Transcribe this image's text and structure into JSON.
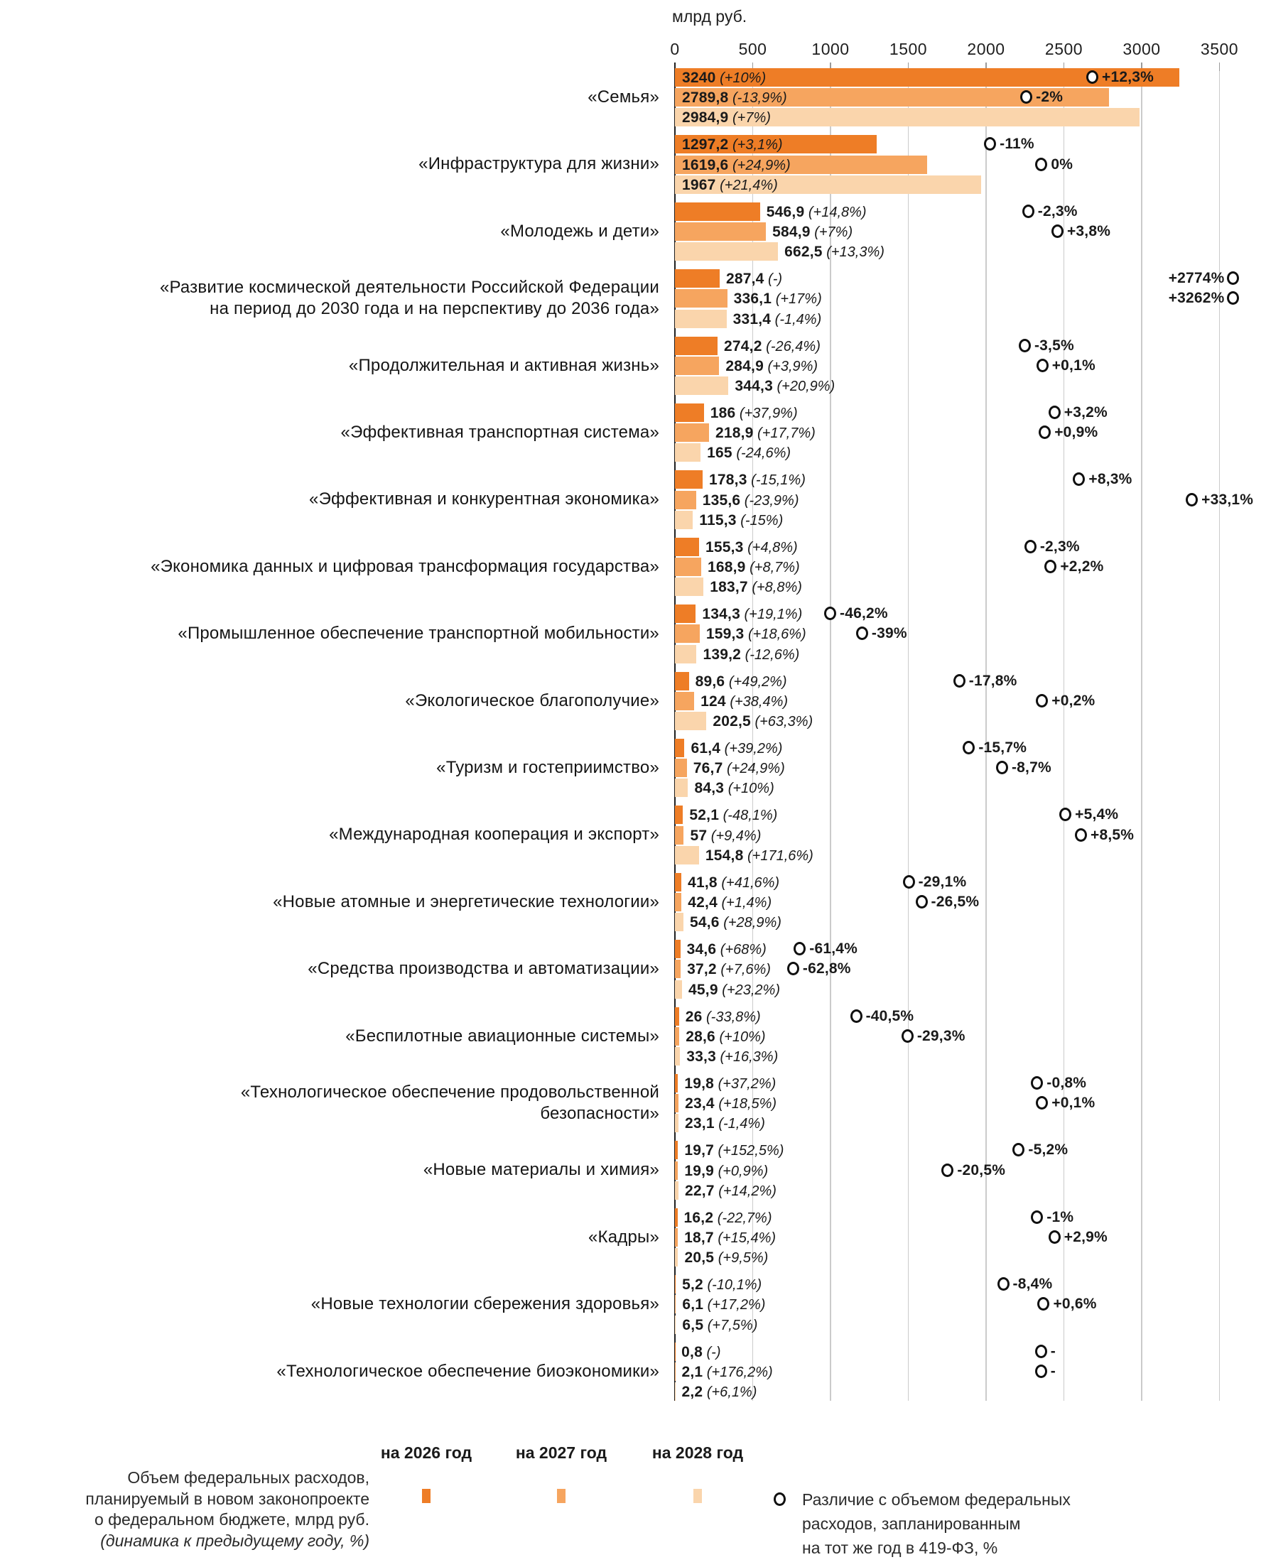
{
  "axis": {
    "unit_label": "млрд руб.",
    "ticks": [
      0,
      500,
      1000,
      1500,
      2000,
      2500,
      3000,
      3500
    ],
    "max": 3500
  },
  "colors": {
    "bar_2026": "#EE7D26",
    "bar_2027": "#F6A55F",
    "bar_2028": "#FAD5AC",
    "gridline": "#CBCBCB",
    "axis_line": "#1F1F1F",
    "marker_ring": "#101010"
  },
  "legend": {
    "col_2026": "на 2026 год",
    "col_2027": "на 2027 год",
    "col_2028": "на 2028 год",
    "bars_desc_line1": "Объем федеральных расходов,",
    "bars_desc_line2": "планируемый в новом законопроекте",
    "bars_desc_line3": "о федеральном бюджете, млрд руб.",
    "bars_desc_line4": "(динамика к предыдущему году, %)",
    "marker_desc": "Различие с объемом федеральных\nрасходов, запланированным\nна тот же год в 419-ФЗ, %"
  },
  "chart_data": {
    "type": "bar",
    "orientation": "horizontal",
    "unit": "млрд руб.",
    "xlim": [
      0,
      3500
    ],
    "grid": true,
    "series_labels": [
      "на 2026 год",
      "на 2027 год",
      "на 2028 год"
    ],
    "marker_meaning": "Различие с объемом федеральных расходов, запланированным на тот же год в 419-ФЗ, %",
    "groups": [
      {
        "label": "«Семья»",
        "bars": [
          {
            "value": 3240,
            "value_label": "3240",
            "delta": "(+10%)",
            "marker": {
              "text": "+12,3%",
              "pos": 2685
            }
          },
          {
            "value": 2789.8,
            "value_label": "2789,8",
            "delta": "(-13,9%)",
            "marker": {
              "text": "-2%",
              "pos": 2261
            }
          },
          {
            "value": 2984.9,
            "value_label": "2984,9",
            "delta": "(+7%)",
            "marker": null
          }
        ]
      },
      {
        "label": "«Инфраструктура для жизни»",
        "bars": [
          {
            "value": 1297.2,
            "value_label": "1297,2",
            "delta": "(+3,1%)",
            "marker": {
              "text": "-11%",
              "pos": 2028
            }
          },
          {
            "value": 1619.6,
            "value_label": "1619,6",
            "delta": "(+24,9%)",
            "marker": {
              "text": "0%",
              "pos": 2358
            }
          },
          {
            "value": 1967,
            "value_label": "1967",
            "delta": "(+21,4%)",
            "marker": null
          }
        ]
      },
      {
        "label": "«Молодежь и дети»",
        "bars": [
          {
            "value": 546.9,
            "value_label": "546,9",
            "delta": "(+14,8%)",
            "marker": {
              "text": "-2,3%",
              "pos": 2273
            }
          },
          {
            "value": 584.9,
            "value_label": "584,9",
            "delta": "(+7%)",
            "marker": {
              "text": "+3,8%",
              "pos": 2461
            }
          },
          {
            "value": 662.5,
            "value_label": "662,5",
            "delta": "(+13,3%)",
            "marker": null
          }
        ]
      },
      {
        "label": "«Развитие космической деятельности Российской Федерации\nна период до 2030 года и на перспективу до 2036 года»",
        "bars": [
          {
            "value": 287.4,
            "value_label": "287,4",
            "delta": "(-)",
            "marker": {
              "text": "+2774%",
              "pos": 3587,
              "side": "left"
            }
          },
          {
            "value": 336.1,
            "value_label": "336,1",
            "delta": "(+17%)",
            "marker": {
              "text": "+3262%",
              "pos": 3587,
              "side": "left"
            }
          },
          {
            "value": 331.4,
            "value_label": "331,4",
            "delta": "(-1,4%)",
            "marker": null
          }
        ]
      },
      {
        "label": "«Продолжительная и активная жизнь»",
        "bars": [
          {
            "value": 274.2,
            "value_label": "274,2",
            "delta": "(-26,4%)",
            "marker": {
              "text": "-3,5%",
              "pos": 2251
            }
          },
          {
            "value": 284.9,
            "value_label": "284,9",
            "delta": "(+3,9%)",
            "marker": {
              "text": "+0,1%",
              "pos": 2364
            }
          },
          {
            "value": 344.3,
            "value_label": "344,3",
            "delta": "(+20,9%)",
            "marker": null
          }
        ]
      },
      {
        "label": "«Эффективная транспортная система»",
        "bars": [
          {
            "value": 186,
            "value_label": "186",
            "delta": "(+37,9%)",
            "marker": {
              "text": "+3,2%",
              "pos": 2442
            }
          },
          {
            "value": 218.9,
            "value_label": "218,9",
            "delta": "(+17,7%)",
            "marker": {
              "text": "+0,9%",
              "pos": 2380
            }
          },
          {
            "value": 165,
            "value_label": "165",
            "delta": "(-24,6%)",
            "marker": null
          }
        ]
      },
      {
        "label": "«Эффективная и конкурентная экономика»",
        "bars": [
          {
            "value": 178.3,
            "value_label": "178,3",
            "delta": "(-15,1%)",
            "marker": {
              "text": "+8,3%",
              "pos": 2600
            }
          },
          {
            "value": 135.6,
            "value_label": "135,6",
            "delta": "(-23,9%)",
            "marker": {
              "text": "+33,1%",
              "pos": 3325
            }
          },
          {
            "value": 115.3,
            "value_label": "115,3",
            "delta": "(-15%)",
            "marker": null
          }
        ]
      },
      {
        "label": "«Экономика данных и цифровая трансформация государства»",
        "bars": [
          {
            "value": 155.3,
            "value_label": "155,3",
            "delta": "(+4,8%)",
            "marker": {
              "text": "-2,3%",
              "pos": 2287
            }
          },
          {
            "value": 168.9,
            "value_label": "168,9",
            "delta": "(+8,7%)",
            "marker": {
              "text": "+2,2%",
              "pos": 2417
            }
          },
          {
            "value": 183.7,
            "value_label": "183,7",
            "delta": "(+8,8%)",
            "marker": null
          }
        ]
      },
      {
        "label": "«Промышленное обеспечение транспортной мобильности»",
        "bars": [
          {
            "value": 134.3,
            "value_label": "134,3",
            "delta": "(+19,1%)",
            "marker": {
              "text": "-46,2%",
              "pos": 1000
            }
          },
          {
            "value": 159.3,
            "value_label": "159,3",
            "delta": "(+18,6%)",
            "marker": {
              "text": "-39%",
              "pos": 1205
            }
          },
          {
            "value": 139.2,
            "value_label": "139,2",
            "delta": "(-12,6%)",
            "marker": null
          }
        ]
      },
      {
        "label": "«Экологическое благополучие»",
        "bars": [
          {
            "value": 89.6,
            "value_label": "89,6",
            "delta": "(+49,2%)",
            "marker": {
              "text": "-17,8%",
              "pos": 1830
            }
          },
          {
            "value": 124,
            "value_label": "124",
            "delta": "(+38,4%)",
            "marker": {
              "text": "+0,2%",
              "pos": 2362
            }
          },
          {
            "value": 202.5,
            "value_label": "202,5",
            "delta": "(+63,3%)",
            "marker": null
          }
        ]
      },
      {
        "label": "«Туризм и гостеприимство»",
        "bars": [
          {
            "value": 61.4,
            "value_label": "61,4",
            "delta": "(+39,2%)",
            "marker": {
              "text": "-15,7%",
              "pos": 1892
            }
          },
          {
            "value": 76.7,
            "value_label": "76,7",
            "delta": "(+24,9%)",
            "marker": {
              "text": "-8,7%",
              "pos": 2105
            }
          },
          {
            "value": 84.3,
            "value_label": "84,3",
            "delta": "(+10%)",
            "marker": null
          }
        ]
      },
      {
        "label": "«Международная кооперация и экспорт»",
        "bars": [
          {
            "value": 52.1,
            "value_label": "52,1",
            "delta": "(-48,1%)",
            "marker": {
              "text": "+5,4%",
              "pos": 2512
            }
          },
          {
            "value": 57,
            "value_label": "57",
            "delta": "(+9,4%)",
            "marker": {
              "text": "+8,5%",
              "pos": 2612
            }
          },
          {
            "value": 154.8,
            "value_label": "154,8",
            "delta": "(+171,6%)",
            "marker": null
          }
        ]
      },
      {
        "label": "«Новые атомные и энергетические технологии»",
        "bars": [
          {
            "value": 41.8,
            "value_label": "41,8",
            "delta": "(+41,6%)",
            "marker": {
              "text": "-29,1%",
              "pos": 1505
            }
          },
          {
            "value": 42.4,
            "value_label": "42,4",
            "delta": "(+1,4%)",
            "marker": {
              "text": "-26,5%",
              "pos": 1587
            }
          },
          {
            "value": 54.6,
            "value_label": "54,6",
            "delta": "(+28,9%)",
            "marker": null
          }
        ]
      },
      {
        "label": "«Средства производства и автоматизации»",
        "bars": [
          {
            "value": 34.6,
            "value_label": "34,6",
            "delta": "(+68%)",
            "marker": {
              "text": "-61,4%",
              "pos": 805
            }
          },
          {
            "value": 37.2,
            "value_label": "37,2",
            "delta": "(+7,6%)",
            "marker": {
              "text": "-62,8%",
              "pos": 762
            }
          },
          {
            "value": 45.9,
            "value_label": "45,9",
            "delta": "(+23,2%)",
            "marker": null
          }
        ]
      },
      {
        "label": "«Беспилотные авиационные системы»",
        "bars": [
          {
            "value": 26,
            "value_label": "26",
            "delta": "(-33,8%)",
            "marker": {
              "text": "-40,5%",
              "pos": 1167
            }
          },
          {
            "value": 28.6,
            "value_label": "28,6",
            "delta": "(+10%)",
            "marker": {
              "text": "-29,3%",
              "pos": 1497
            }
          },
          {
            "value": 33.3,
            "value_label": "33,3",
            "delta": "(+16,3%)",
            "marker": null
          }
        ]
      },
      {
        "label": "«Технологическое обеспечение продовольственной\nбезопасности»",
        "bars": [
          {
            "value": 19.8,
            "value_label": "19,8",
            "delta": "(+37,2%)",
            "marker": {
              "text": "-0,8%",
              "pos": 2330
            }
          },
          {
            "value": 23.4,
            "value_label": "23,4",
            "delta": "(+18,5%)",
            "marker": {
              "text": "+0,1%",
              "pos": 2362
            }
          },
          {
            "value": 23.1,
            "value_label": "23,1",
            "delta": "(-1,4%)",
            "marker": null
          }
        ]
      },
      {
        "label": "«Новые материалы и химия»",
        "bars": [
          {
            "value": 19.7,
            "value_label": "19,7",
            "delta": "(+152,5%)",
            "marker": {
              "text": "-5,2%",
              "pos": 2212
            }
          },
          {
            "value": 19.9,
            "value_label": "19,9",
            "delta": "(+0,9%)",
            "marker": {
              "text": "-20,5%",
              "pos": 1755
            }
          },
          {
            "value": 22.7,
            "value_label": "22,7",
            "delta": "(+14,2%)",
            "marker": null
          }
        ]
      },
      {
        "label": "«Кадры»",
        "bars": [
          {
            "value": 16.2,
            "value_label": "16,2",
            "delta": "(-22,7%)",
            "marker": {
              "text": "-1%",
              "pos": 2330
            }
          },
          {
            "value": 18.7,
            "value_label": "18,7",
            "delta": "(+15,4%)",
            "marker": {
              "text": "+2,9%",
              "pos": 2442
            }
          },
          {
            "value": 20.5,
            "value_label": "20,5",
            "delta": "(+9,5%)",
            "marker": null
          }
        ]
      },
      {
        "label": "«Новые технологии сбережения здоровья»",
        "bars": [
          {
            "value": 5.2,
            "value_label": "5,2",
            "delta": "(-10,1%)",
            "marker": {
              "text": "-8,4%",
              "pos": 2112
            }
          },
          {
            "value": 6.1,
            "value_label": "6,1",
            "delta": "(+17,2%)",
            "marker": {
              "text": "+0,6%",
              "pos": 2372
            }
          },
          {
            "value": 6.5,
            "value_label": "6,5",
            "delta": "(+7,5%)",
            "marker": null
          }
        ]
      },
      {
        "label": "«Технологическое обеспечение биоэкономики»",
        "bars": [
          {
            "value": 0.8,
            "value_label": "0,8",
            "delta": "(-)",
            "marker": {
              "text": "-",
              "pos": 2355
            }
          },
          {
            "value": 2.1,
            "value_label": "2,1",
            "delta": "(+176,2%)",
            "marker": {
              "text": "-",
              "pos": 2355
            }
          },
          {
            "value": 2.2,
            "value_label": "2,2",
            "delta": "(+6,1%)",
            "marker": null
          }
        ]
      }
    ]
  }
}
